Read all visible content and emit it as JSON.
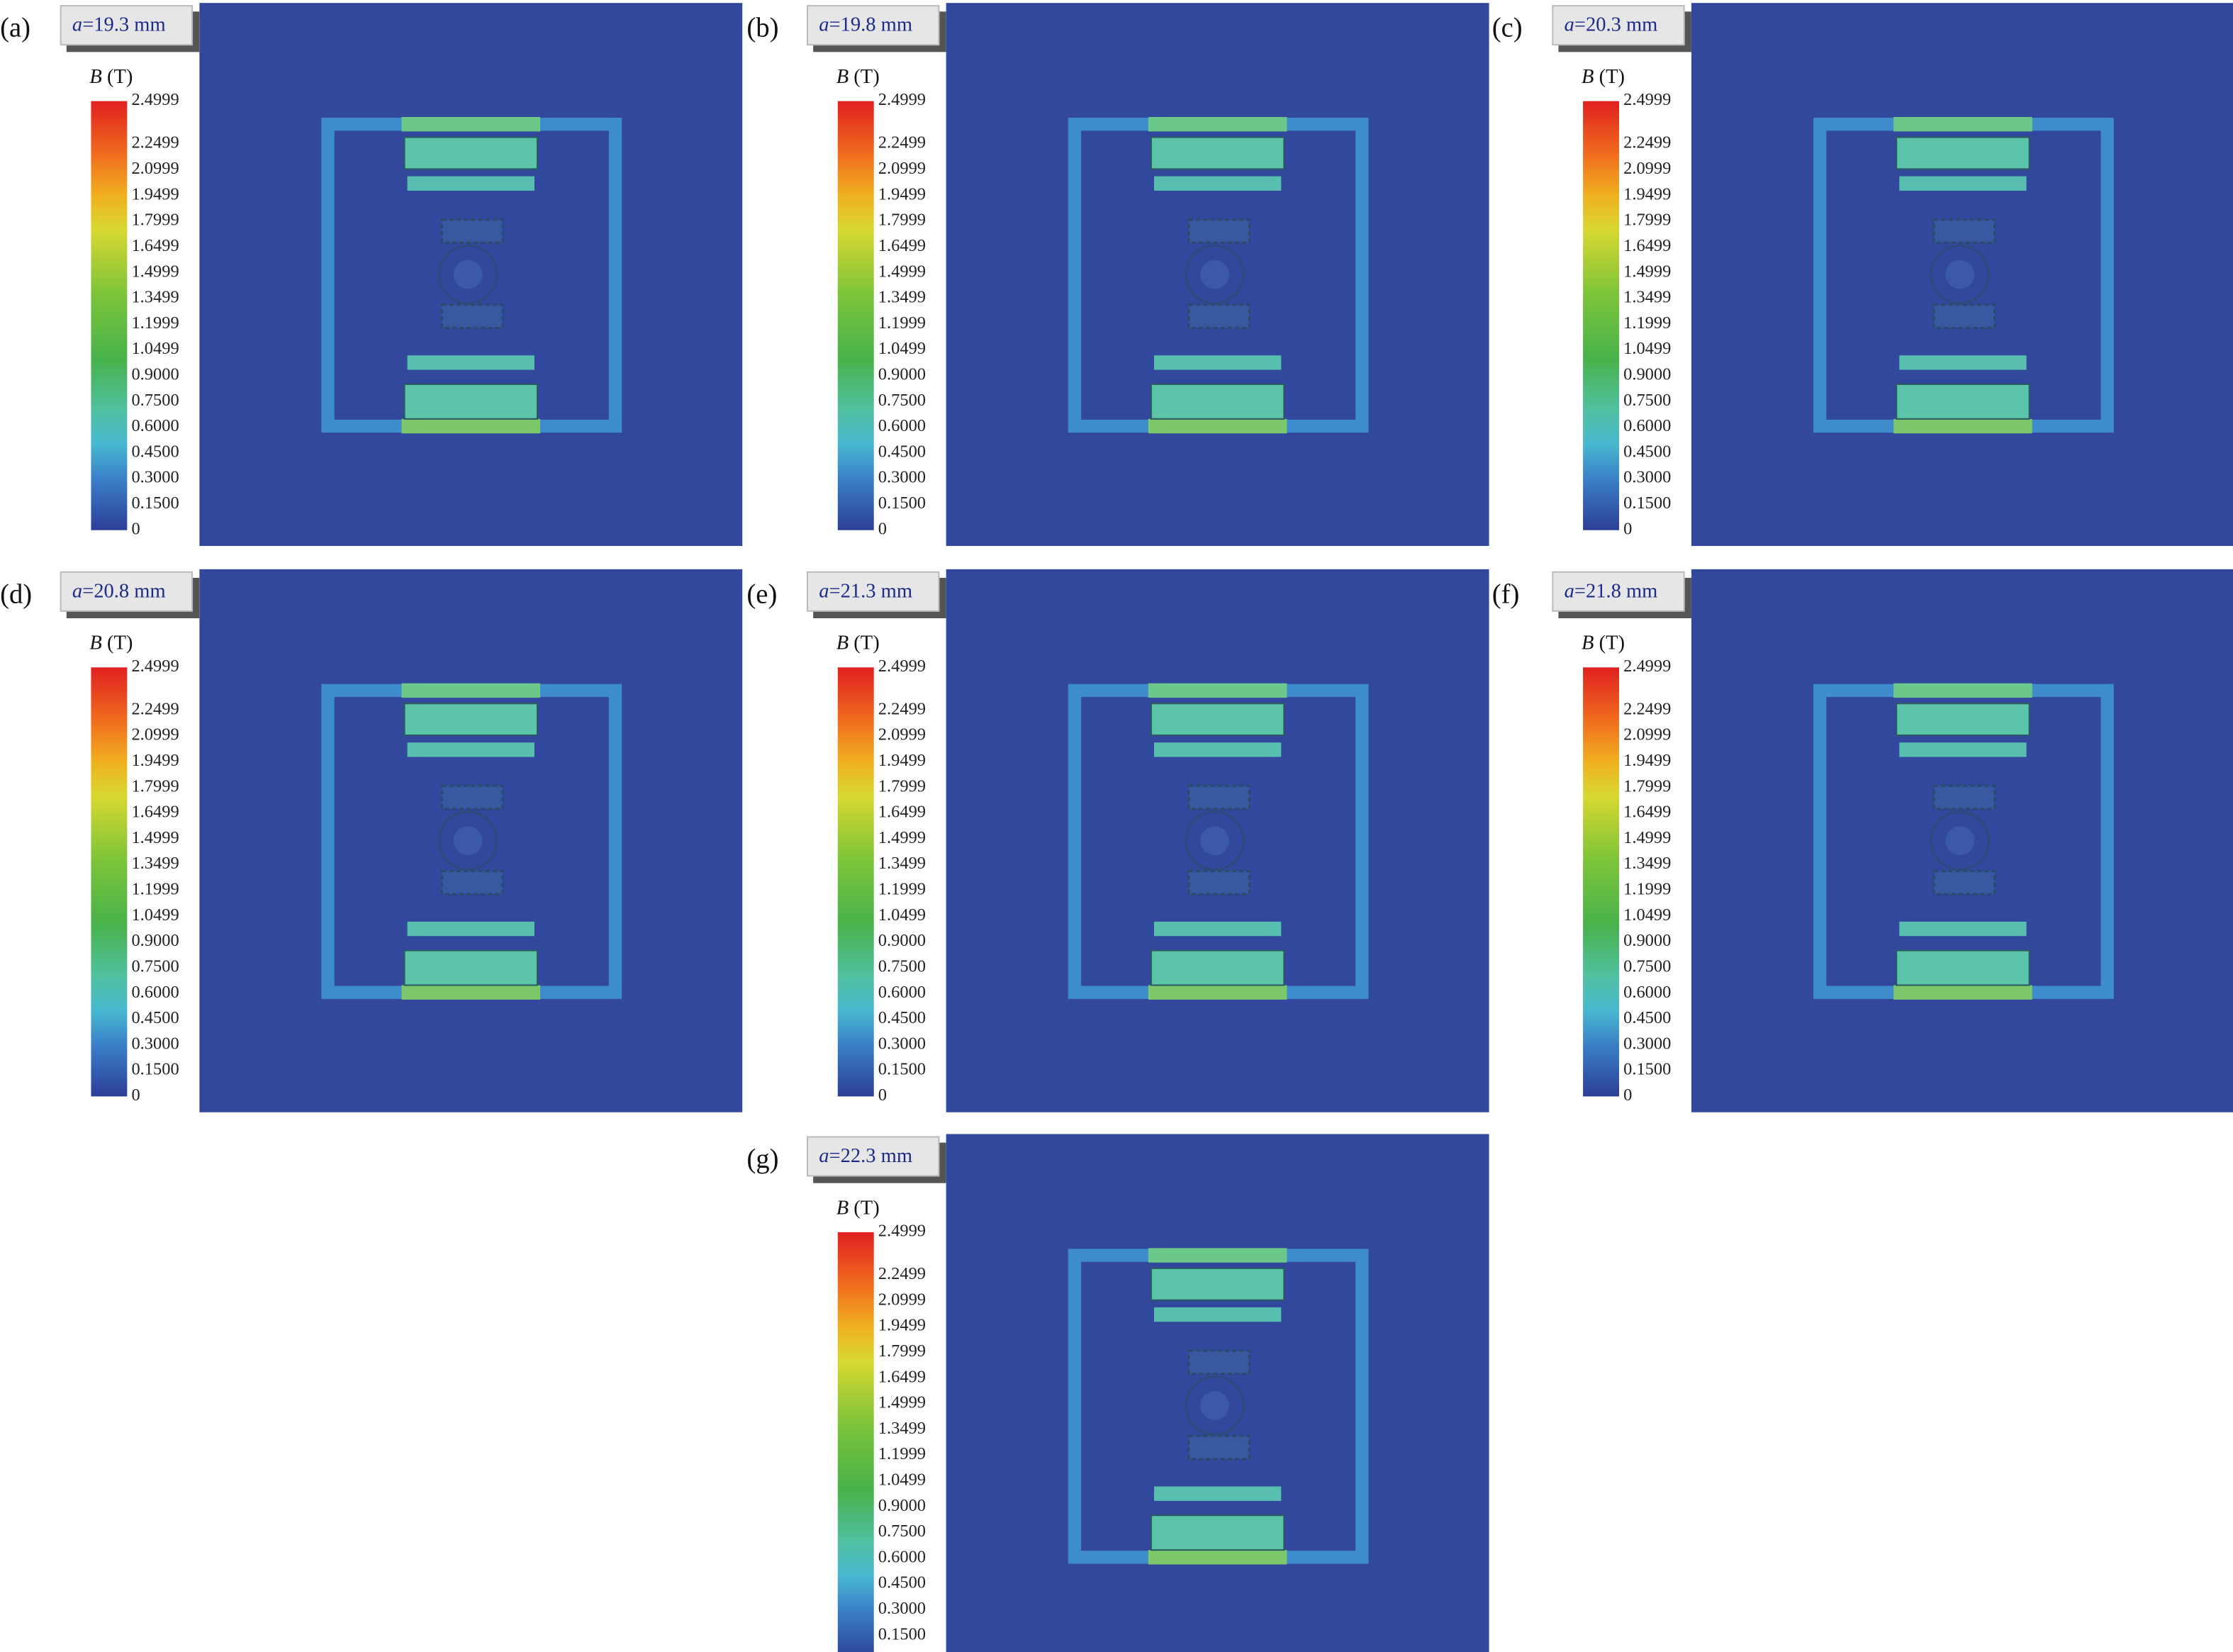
{
  "colorbar": {
    "title_symbol": "B",
    "title_unit": "(T)",
    "ticks": [
      "2.4999",
      "2.2499",
      "2.0999",
      "1.9499",
      "1.7999",
      "1.6499",
      "1.4999",
      "1.3499",
      "1.1999",
      "1.0499",
      "0.9000",
      "0.7500",
      "0.6000",
      "0.4500",
      "0.3000",
      "0.1500",
      "0"
    ]
  },
  "panels": [
    {
      "label": "(a)",
      "param_symbol": "a",
      "param_text": "=19.3 mm"
    },
    {
      "label": "(b)",
      "param_symbol": "a",
      "param_text": "=19.8 mm"
    },
    {
      "label": "(c)",
      "param_symbol": "a",
      "param_text": "=20.3 mm"
    },
    {
      "label": "(d)",
      "param_symbol": "a",
      "param_text": "=20.8 mm"
    },
    {
      "label": "(e)",
      "param_symbol": "a",
      "param_text": "=21.3 mm"
    },
    {
      "label": "(f)",
      "param_symbol": "a",
      "param_text": "=21.8 mm"
    },
    {
      "label": "(g)",
      "param_symbol": "a",
      "param_text": "=22.3 mm"
    }
  ]
}
